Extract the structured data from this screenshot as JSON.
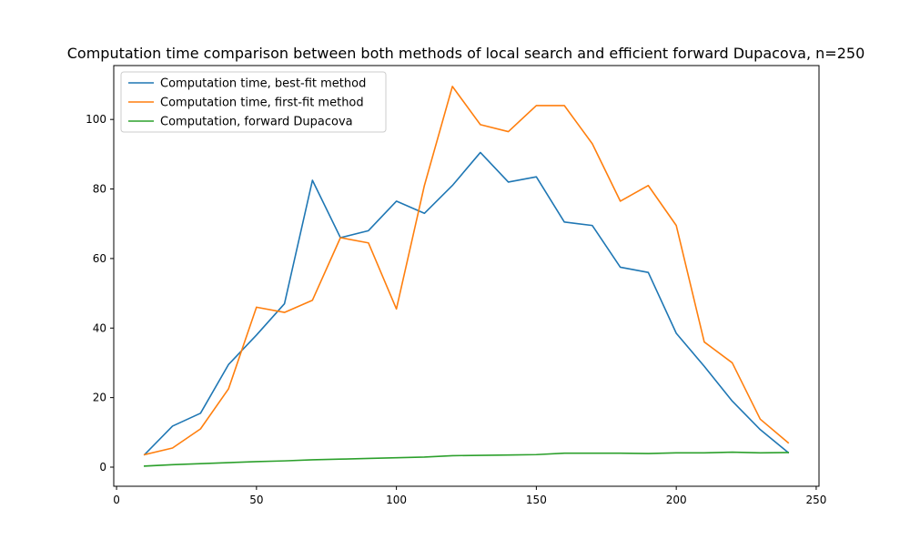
{
  "chart_data": {
    "type": "line",
    "title": "Computation time comparison between both methods of local search and efficient forward Dupacova, n=250",
    "xlabel": "",
    "ylabel": "",
    "xlim": [
      -1,
      251
    ],
    "ylim": [
      -5.5,
      115.5
    ],
    "xticks": [
      0,
      50,
      100,
      150,
      200,
      250
    ],
    "yticks": [
      0,
      20,
      40,
      60,
      80,
      100
    ],
    "grid": false,
    "legend_position": "top-left",
    "x": [
      10,
      20,
      30,
      40,
      50,
      60,
      70,
      80,
      90,
      100,
      110,
      120,
      130,
      140,
      150,
      160,
      170,
      180,
      190,
      200,
      210,
      220,
      230,
      240
    ],
    "series": [
      {
        "name": "Computation time, best-fit method",
        "color": "#1f77b4",
        "values": [
          3.6,
          11.8,
          15.5,
          29.5,
          38.0,
          47.0,
          82.5,
          66.0,
          68.0,
          76.5,
          73.0,
          81.0,
          90.5,
          82.0,
          83.5,
          70.5,
          69.5,
          57.5,
          56.0,
          38.5,
          29.0,
          19.0,
          10.8,
          4.2
        ]
      },
      {
        "name": "Computation time, first-fit method",
        "color": "#ff7f0e",
        "values": [
          3.6,
          5.5,
          11.0,
          22.5,
          46.0,
          44.5,
          48.0,
          66.0,
          64.5,
          45.5,
          81.0,
          109.5,
          98.5,
          96.5,
          104.0,
          104.0,
          93.0,
          76.5,
          81.0,
          69.5,
          36.0,
          30.0,
          13.8,
          7.0
        ]
      },
      {
        "name": "Computation, forward Dupacova",
        "color": "#2ca02c",
        "values": [
          0.3,
          0.7,
          1.0,
          1.3,
          1.6,
          1.8,
          2.1,
          2.3,
          2.5,
          2.7,
          2.9,
          3.3,
          3.4,
          3.5,
          3.6,
          4.0,
          4.0,
          4.0,
          3.9,
          4.1,
          4.1,
          4.3,
          4.1,
          4.2
        ]
      }
    ]
  }
}
